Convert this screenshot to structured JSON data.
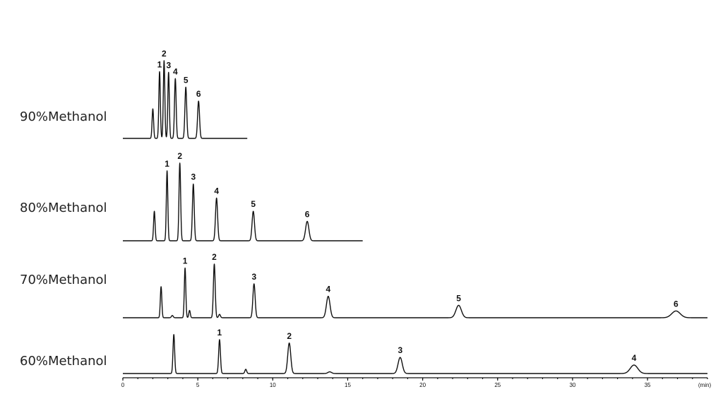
{
  "chart_data": {
    "type": "line",
    "title": "",
    "xlabel": "",
    "ylabel": "",
    "x_unit": "(min)",
    "xlim": [
      0,
      39
    ],
    "x_ticks": [
      0,
      5,
      10,
      15,
      20,
      25,
      30,
      35
    ],
    "grid": false,
    "legend": "none",
    "line_color": "#111111",
    "series": [
      {
        "name": "90%Methanol",
        "x_end": 8.3,
        "peak_scale": 110,
        "peaks": [
          {
            "label": "",
            "time": 2.0,
            "height": 0.38,
            "width": 0.05
          },
          {
            "label": "1",
            "time": 2.45,
            "height": 0.86,
            "width": 0.05
          },
          {
            "label": "2",
            "time": 2.75,
            "height": 1.0,
            "width": 0.05
          },
          {
            "label": "3",
            "time": 3.05,
            "height": 0.85,
            "width": 0.05
          },
          {
            "label": "4",
            "time": 3.5,
            "height": 0.77,
            "width": 0.055
          },
          {
            "label": "5",
            "time": 4.2,
            "height": 0.66,
            "width": 0.06
          },
          {
            "label": "6",
            "time": 5.05,
            "height": 0.48,
            "width": 0.065
          }
        ]
      },
      {
        "name": "80%Methanol",
        "x_end": 16.0,
        "peak_scale": 110,
        "peaks": [
          {
            "label": "",
            "time": 2.1,
            "height": 0.38,
            "width": 0.05
          },
          {
            "label": "1",
            "time": 2.95,
            "height": 0.9,
            "width": 0.05
          },
          {
            "label": "2",
            "time": 3.8,
            "height": 1.0,
            "width": 0.055
          },
          {
            "label": "3",
            "time": 4.7,
            "height": 0.73,
            "width": 0.06
          },
          {
            "label": "4",
            "time": 6.25,
            "height": 0.55,
            "width": 0.07
          },
          {
            "label": "5",
            "time": 8.7,
            "height": 0.38,
            "width": 0.08
          },
          {
            "label": "6",
            "time": 12.3,
            "height": 0.25,
            "width": 0.11
          }
        ]
      },
      {
        "name": "70%Methanol",
        "x_end": 39,
        "peak_scale": 80,
        "peaks": [
          {
            "label": "",
            "time": 2.55,
            "height": 0.55,
            "width": 0.05
          },
          {
            "label": "",
            "time": 3.3,
            "height": 0.04,
            "width": 0.06
          },
          {
            "label": "1",
            "time": 4.15,
            "height": 0.88,
            "width": 0.05
          },
          {
            "label": "",
            "time": 4.45,
            "height": 0.13,
            "width": 0.05
          },
          {
            "label": "2",
            "time": 6.1,
            "height": 0.95,
            "width": 0.06
          },
          {
            "label": "",
            "time": 6.45,
            "height": 0.06,
            "width": 0.06
          },
          {
            "label": "3",
            "time": 8.75,
            "height": 0.6,
            "width": 0.075
          },
          {
            "label": "4",
            "time": 13.7,
            "height": 0.38,
            "width": 0.12
          },
          {
            "label": "5",
            "time": 22.4,
            "height": 0.22,
            "width": 0.18
          },
          {
            "label": "6",
            "time": 36.9,
            "height": 0.12,
            "width": 0.28
          }
        ]
      },
      {
        "name": "60%Methanol",
        "x_end": 39,
        "peak_scale": 60,
        "peaks": [
          {
            "label": "",
            "time": 3.4,
            "height": 0.92,
            "width": 0.055
          },
          {
            "label": "1",
            "time": 6.45,
            "height": 0.8,
            "width": 0.06
          },
          {
            "label": "",
            "time": 8.2,
            "height": 0.1,
            "width": 0.06
          },
          {
            "label": "2",
            "time": 11.1,
            "height": 0.72,
            "width": 0.1
          },
          {
            "label": "",
            "time": 13.8,
            "height": 0.04,
            "width": 0.12
          },
          {
            "label": "3",
            "time": 18.5,
            "height": 0.38,
            "width": 0.14
          },
          {
            "label": "4",
            "time": 34.1,
            "height": 0.2,
            "width": 0.25
          }
        ]
      }
    ]
  }
}
